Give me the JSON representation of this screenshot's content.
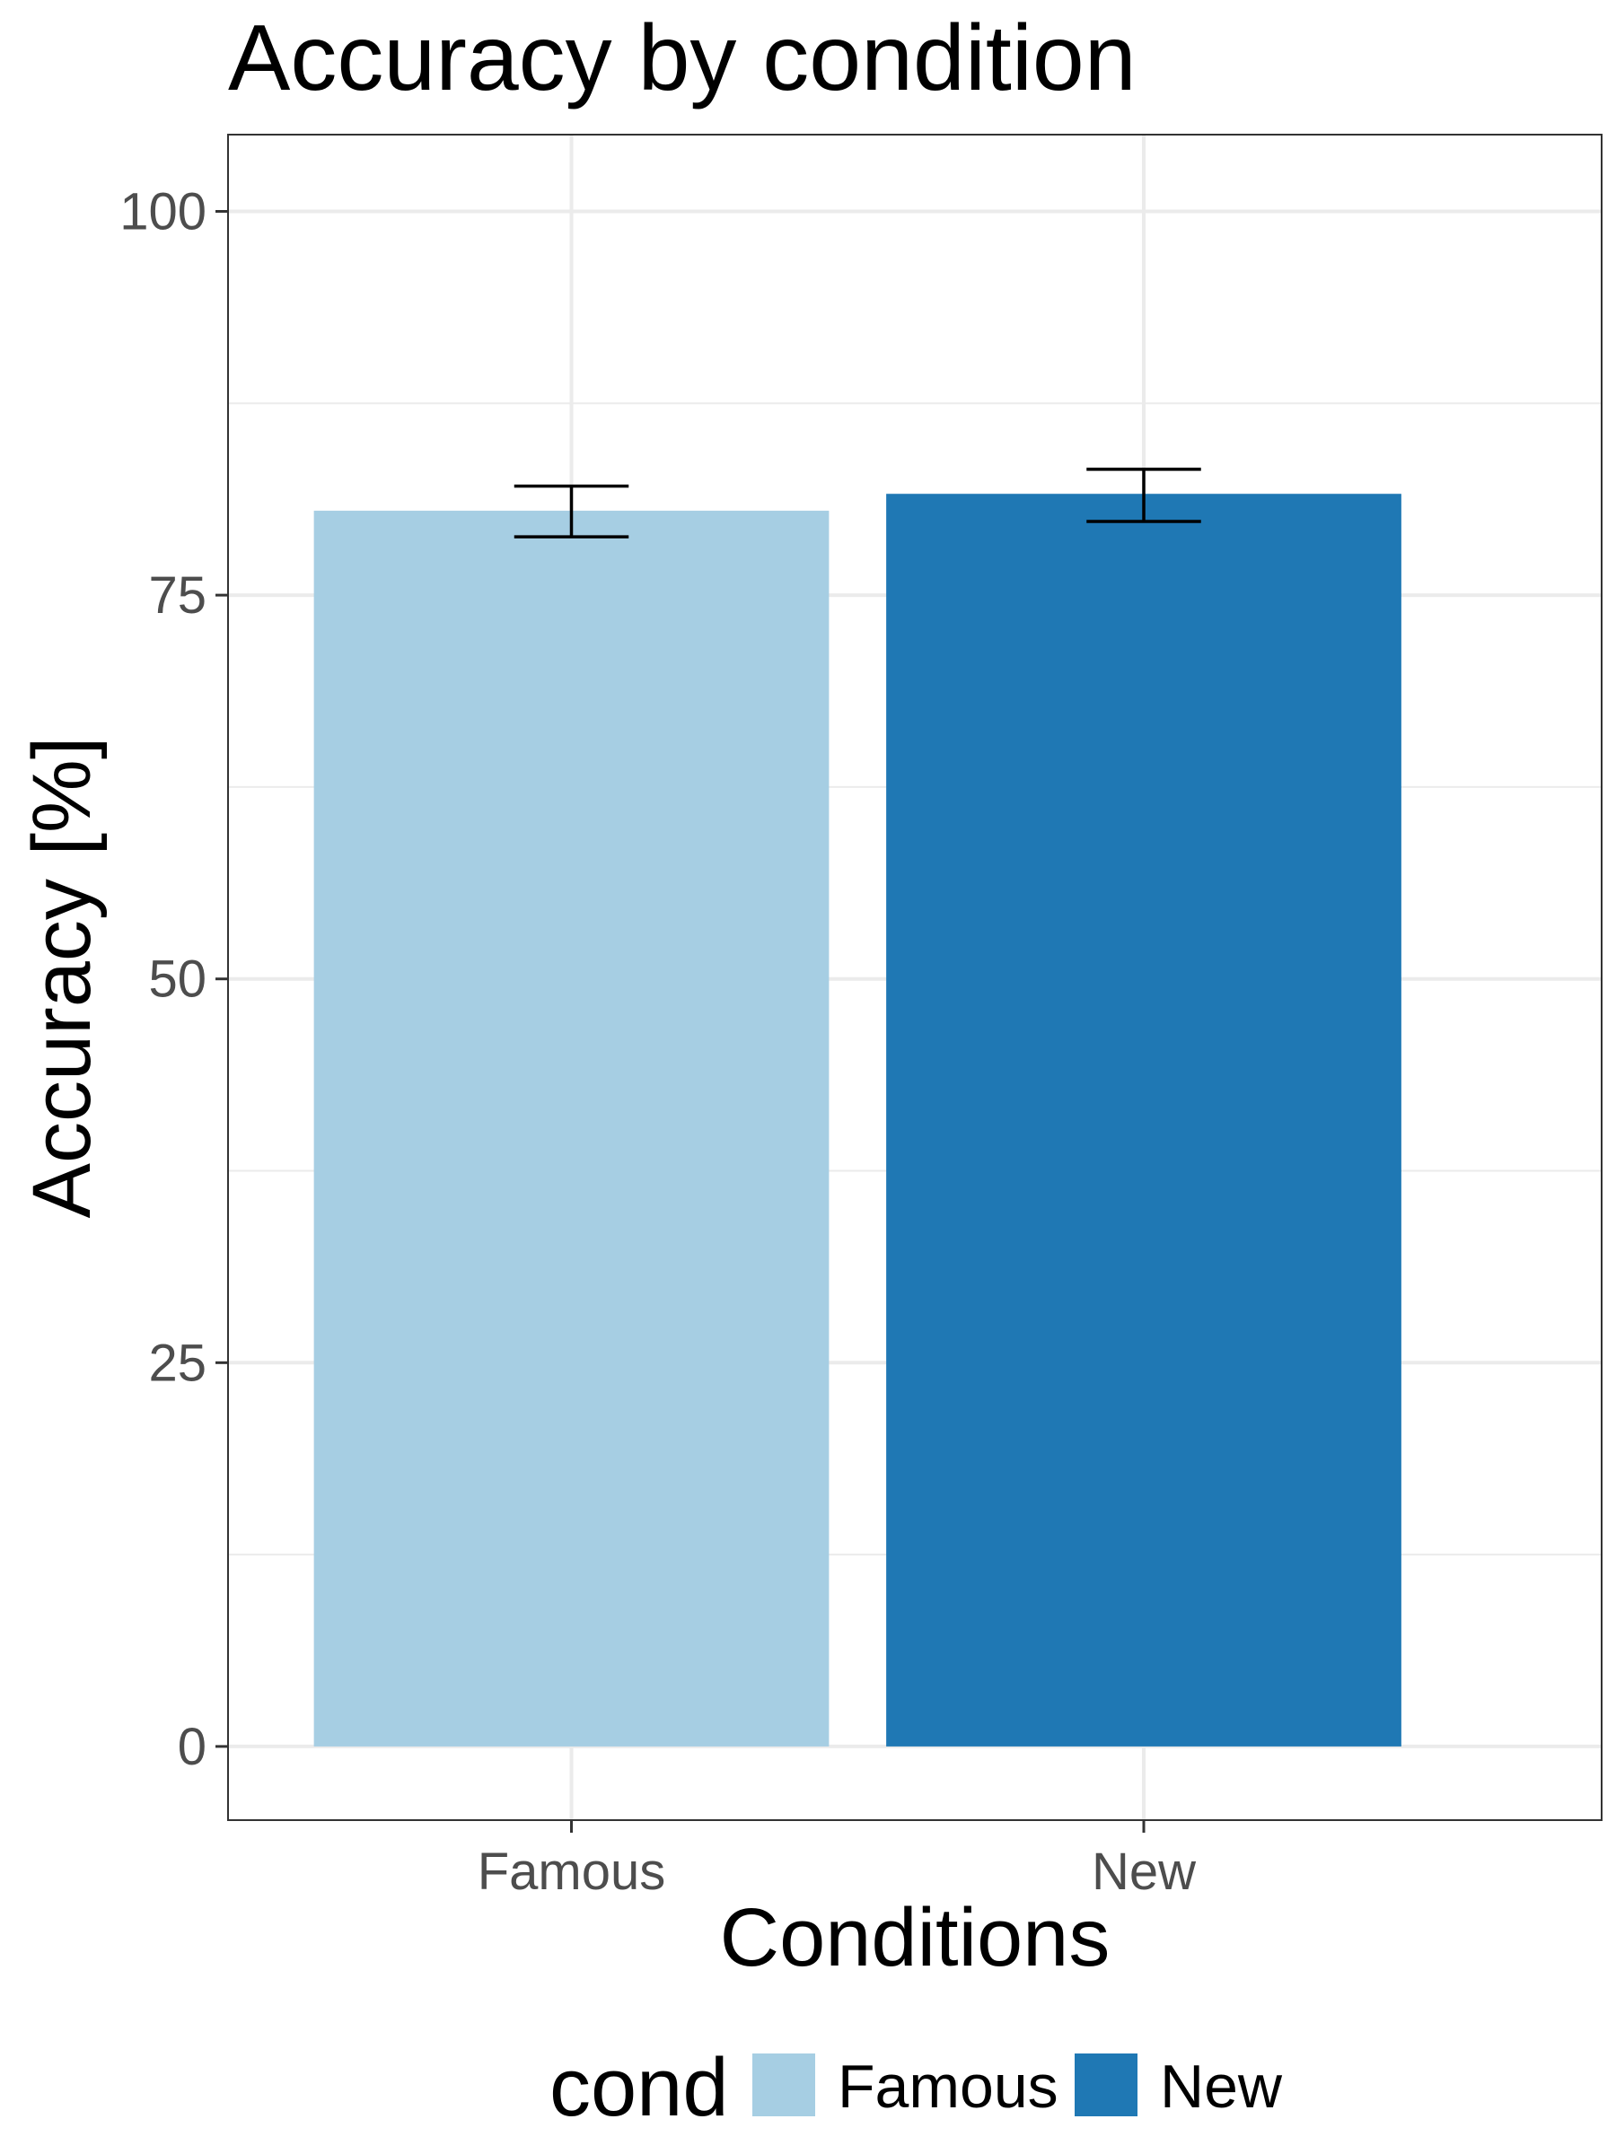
{
  "chart_data": {
    "type": "bar",
    "title": "Accuracy by condition",
    "xlabel": "Conditions",
    "ylabel": "Accuracy [%]",
    "categories": [
      "Famous",
      "New"
    ],
    "values": [
      80.5,
      81.6
    ],
    "error_bars": [
      {
        "low": 78.8,
        "high": 82.1
      },
      {
        "low": 79.8,
        "high": 83.2
      }
    ],
    "colors": [
      "#a6cee3",
      "#1f78b4"
    ],
    "ylim": [
      -4.8,
      105
    ],
    "yticks": [
      0,
      25,
      50,
      75,
      100
    ],
    "grid": true,
    "legend": {
      "title": "cond",
      "position": "bottom",
      "entries": [
        "Famous",
        "New"
      ]
    }
  },
  "style": {
    "panel_border_color": "#333333",
    "grid_color": "#ebebeb",
    "errorbar_color": "#000000"
  }
}
